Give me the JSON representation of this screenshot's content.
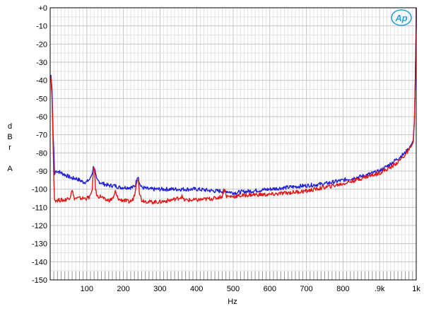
{
  "chart_data": {
    "type": "line",
    "xlabel": "Hz",
    "ylabel_lines": [
      "d",
      "B",
      "r",
      "",
      "A"
    ],
    "logo": "Ap",
    "xlim": [
      0,
      1000
    ],
    "ylim": [
      -150,
      0
    ],
    "x_ticks": [
      {
        "value": 100,
        "label": "100"
      },
      {
        "value": 200,
        "label": "200"
      },
      {
        "value": 300,
        "label": "300"
      },
      {
        "value": 400,
        "label": "400"
      },
      {
        "value": 500,
        "label": "500"
      },
      {
        "value": 600,
        "label": "600"
      },
      {
        "value": 700,
        "label": "700"
      },
      {
        "value": 800,
        "label": "800"
      },
      {
        "value": 900,
        "label": ".9k"
      },
      {
        "value": 1000,
        "label": "1k"
      }
    ],
    "y_ticks": [
      {
        "value": 0,
        "label": "+0"
      },
      {
        "value": -10,
        "label": "-10"
      },
      {
        "value": -20,
        "label": "-20"
      },
      {
        "value": -30,
        "label": "-30"
      },
      {
        "value": -40,
        "label": "-40"
      },
      {
        "value": -50,
        "label": "-50"
      },
      {
        "value": -60,
        "label": "-60"
      },
      {
        "value": -70,
        "label": "-70"
      },
      {
        "value": -80,
        "label": "-80"
      },
      {
        "value": -90,
        "label": "-90"
      },
      {
        "value": -100,
        "label": "-100"
      },
      {
        "value": -110,
        "label": "-110"
      },
      {
        "value": -120,
        "label": "-120"
      },
      {
        "value": -130,
        "label": "-130"
      },
      {
        "value": -140,
        "label": "-140"
      },
      {
        "value": -150,
        "label": "-150"
      }
    ],
    "grid": true,
    "series": [
      {
        "color": "#1f1fd6",
        "points": [
          [
            2,
            -37
          ],
          [
            5,
            -45
          ],
          [
            8,
            -70
          ],
          [
            10,
            -79
          ],
          [
            12,
            -92
          ],
          [
            15,
            -90
          ],
          [
            20,
            -90
          ],
          [
            30,
            -91
          ],
          [
            40,
            -92
          ],
          [
            50,
            -93
          ],
          [
            60,
            -94
          ],
          [
            70,
            -94
          ],
          [
            80,
            -95
          ],
          [
            90,
            -96
          ],
          [
            100,
            -96
          ],
          [
            105,
            -95
          ],
          [
            110,
            -94
          ],
          [
            115,
            -91
          ],
          [
            118,
            -88
          ],
          [
            121,
            -88
          ],
          [
            124,
            -92
          ],
          [
            127,
            -95
          ],
          [
            135,
            -96
          ],
          [
            145,
            -97
          ],
          [
            160,
            -98
          ],
          [
            175,
            -98
          ],
          [
            190,
            -99
          ],
          [
            200,
            -99
          ],
          [
            215,
            -99
          ],
          [
            225,
            -99
          ],
          [
            232,
            -98
          ],
          [
            236,
            -95
          ],
          [
            238,
            -93
          ],
          [
            241,
            -93
          ],
          [
            244,
            -97
          ],
          [
            250,
            -99
          ],
          [
            270,
            -100
          ],
          [
            300,
            -100
          ],
          [
            350,
            -100
          ],
          [
            400,
            -100
          ],
          [
            450,
            -101
          ],
          [
            480,
            -101
          ],
          [
            500,
            -102
          ],
          [
            550,
            -101
          ],
          [
            600,
            -100
          ],
          [
            650,
            -99
          ],
          [
            700,
            -98
          ],
          [
            750,
            -97
          ],
          [
            800,
            -95
          ],
          [
            850,
            -93
          ],
          [
            900,
            -90
          ],
          [
            930,
            -86
          ],
          [
            950,
            -83
          ],
          [
            970,
            -80
          ],
          [
            985,
            -76
          ],
          [
            992,
            -73
          ],
          [
            995,
            -62
          ],
          [
            997,
            -45
          ],
          [
            999,
            -20
          ],
          [
            1000,
            -10
          ],
          [
            1001,
            0
          ]
        ]
      },
      {
        "color": "#e01818",
        "points": [
          [
            2,
            -38
          ],
          [
            5,
            -50
          ],
          [
            8,
            -75
          ],
          [
            10,
            -95
          ],
          [
            12,
            -106
          ],
          [
            15,
            -106
          ],
          [
            20,
            -106
          ],
          [
            30,
            -106
          ],
          [
            40,
            -106
          ],
          [
            50,
            -105
          ],
          [
            55,
            -104
          ],
          [
            58,
            -101
          ],
          [
            60,
            -100
          ],
          [
            62,
            -102
          ],
          [
            65,
            -105
          ],
          [
            80,
            -105
          ],
          [
            100,
            -105
          ],
          [
            110,
            -104
          ],
          [
            115,
            -100
          ],
          [
            118,
            -89
          ],
          [
            121,
            -89
          ],
          [
            124,
            -100
          ],
          [
            128,
            -104
          ],
          [
            140,
            -104
          ],
          [
            150,
            -106
          ],
          [
            165,
            -106
          ],
          [
            175,
            -104
          ],
          [
            178,
            -101
          ],
          [
            182,
            -104
          ],
          [
            190,
            -106
          ],
          [
            200,
            -106
          ],
          [
            215,
            -107
          ],
          [
            225,
            -106
          ],
          [
            232,
            -102
          ],
          [
            236,
            -96
          ],
          [
            238,
            -94
          ],
          [
            241,
            -95
          ],
          [
            244,
            -102
          ],
          [
            250,
            -106
          ],
          [
            270,
            -107
          ],
          [
            300,
            -107
          ],
          [
            330,
            -106
          ],
          [
            350,
            -105
          ],
          [
            360,
            -104
          ],
          [
            365,
            -106
          ],
          [
            400,
            -106
          ],
          [
            450,
            -105
          ],
          [
            470,
            -104
          ],
          [
            475,
            -100
          ],
          [
            478,
            -101
          ],
          [
            482,
            -104
          ],
          [
            500,
            -104
          ],
          [
            550,
            -103
          ],
          [
            600,
            -103
          ],
          [
            650,
            -102
          ],
          [
            700,
            -101
          ],
          [
            750,
            -99
          ],
          [
            800,
            -97
          ],
          [
            850,
            -94
          ],
          [
            900,
            -91
          ],
          [
            930,
            -88
          ],
          [
            950,
            -85
          ],
          [
            970,
            -81
          ],
          [
            985,
            -77
          ],
          [
            992,
            -74
          ],
          [
            995,
            -62
          ],
          [
            997,
            -45
          ],
          [
            999,
            -20
          ],
          [
            1000,
            -10
          ],
          [
            1001,
            0
          ]
        ]
      }
    ]
  }
}
